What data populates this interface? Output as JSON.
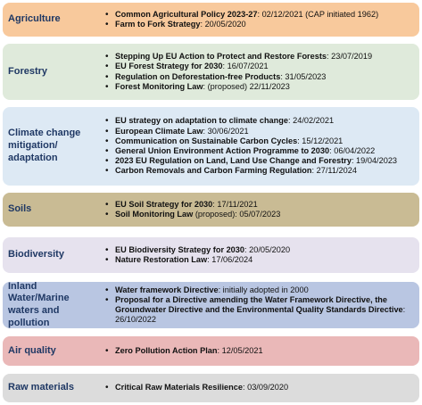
{
  "colors": {
    "agriculture": "#f8c99c",
    "forestry": "#dfeadb",
    "climate": "#dde9f4",
    "soils": "#c9bb94",
    "biodiversity": "#e6e2ee",
    "water": "#b9c6e2",
    "air": "#eab8b8",
    "raw": "#dcdcdc",
    "heading": "#1f3864"
  },
  "rows": [
    {
      "category": "Agriculture",
      "items": [
        {
          "bold": "Common Agricultural Policy 2023-27",
          "rest": ": 02/12/2021 (CAP initiated 1962)"
        },
        {
          "bold": "Farm to Fork Strategy",
          "rest": ": 20/05/2020"
        }
      ]
    },
    {
      "category": "Forestry",
      "items": [
        {
          "bold": "Stepping Up EU Action to Protect and Restore Forests",
          "rest": ": 23/07/2019"
        },
        {
          "bold": "EU Forest Strategy for 2030",
          "rest": ": 16/07/2021"
        },
        {
          "bold": "Regulation on Deforestation-free Products",
          "rest": ": 31/05/2023"
        },
        {
          "bold": "Forest Monitoring Law",
          "rest": ": (proposed) 22/11/2023"
        }
      ]
    },
    {
      "category": "Climate change mitigation/ adaptation",
      "items": [
        {
          "bold": "EU strategy on adaptation to climate change",
          "rest": ": 24/02/2021"
        },
        {
          "bold": "European Climate Law",
          "rest": ": 30/06/2021"
        },
        {
          "bold": "Communication on Sustainable Carbon Cycles",
          "rest": ": 15/12/2021"
        },
        {
          "bold": "General Union Environment Action Programme to 2030",
          "rest": ": 06/04/2022"
        },
        {
          "bold": "2023 EU Regulation on Land, Land Use Change and Forestry",
          "rest": ": 19/04/2023"
        },
        {
          "bold": "Carbon Removals and Carbon Farming Regulation",
          "rest": ": 27/11/2024"
        }
      ]
    },
    {
      "category": "Soils",
      "items": [
        {
          "bold": "EU Soil Strategy for 2030",
          "rest": ": 17/11/2021"
        },
        {
          "bold": "Soil Monitoring Law",
          "rest": " (proposed): 05/07/2023"
        }
      ]
    },
    {
      "category": "Biodiversity",
      "items": [
        {
          "bold": "EU Biodiversity Strategy for 2030",
          "rest": ": 20/05/2020"
        },
        {
          "bold": "Nature Restoration Law",
          "rest": ": 17/06/2024"
        }
      ]
    },
    {
      "category": "Inland Water/Marine waters and pollution",
      "items": [
        {
          "bold": "Water framework Directive",
          "rest": ": initially adopted in 2000"
        },
        {
          "bold": "Proposal for a Directive amending the Water Framework Directive, the Groundwater Directive and the Environmental Quality Standards Directive",
          "rest": ": 26/10/2022"
        }
      ]
    },
    {
      "category": "Air quality",
      "items": [
        {
          "bold": "Zero Pollution Action Plan",
          "rest": ": 12/05/2021"
        }
      ]
    },
    {
      "category": "Raw materials",
      "items": [
        {
          "bold": "Critical Raw Materials Resilience",
          "rest": ": 03/09/2020"
        }
      ]
    }
  ]
}
